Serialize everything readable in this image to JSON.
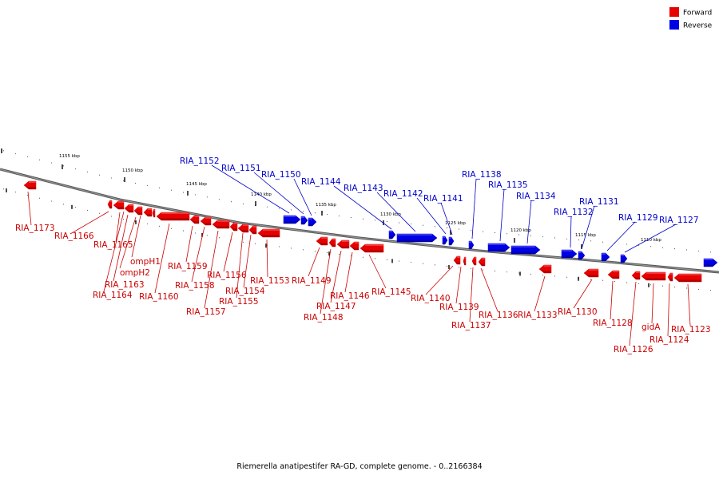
{
  "colors": {
    "forward": "#e80000",
    "reverse": "#0000e6",
    "forward_line": "#cc0000",
    "reverse_line": "#0000cc"
  },
  "legend": {
    "forward_label": "Forward",
    "reverse_label": "Reverse"
  },
  "caption": "Riemerella anatipestifer RA-GD, complete genome. - 0..2166384",
  "scale_labels": [
    "1155 kbp",
    "1150 kbp",
    "1145 kbp",
    "1140 kbp",
    "1135 kbp",
    "1130 kbp",
    "1125 kbp",
    "1120 kbp",
    "1115 kbp",
    "1110 kbp"
  ],
  "forward_genes": [
    "RIA_1173",
    "RIA_1166",
    "RIA_1165",
    "ompH1",
    "ompH2",
    "RIA_1163",
    "RIA_1164",
    "RIA_1160",
    "RIA_1159",
    "RIA_1158",
    "RIA_1157",
    "RIA_1156",
    "RIA_1155",
    "RIA_1154",
    "RIA_1153",
    "RIA_1149",
    "RIA_1148",
    "RIA_1147",
    "RIA_1146",
    "RIA_1145",
    "RIA_1140",
    "RIA_1139",
    "RIA_1137",
    "RIA_1136",
    "RIA_1133",
    "RIA_1130",
    "RIA_1128",
    "RIA_1126",
    "gidA",
    "RIA_1124",
    "RIA_1123"
  ],
  "reverse_genes": [
    "RIA_1152",
    "RIA_1151",
    "RIA_1150",
    "RIA_1144",
    "RIA_1143",
    "RIA_1142",
    "RIA_1141",
    "RIA_1138",
    "RIA_1135",
    "RIA_1134",
    "RIA_1132",
    "RIA_1131",
    "RIA_1129",
    "RIA_1127"
  ]
}
